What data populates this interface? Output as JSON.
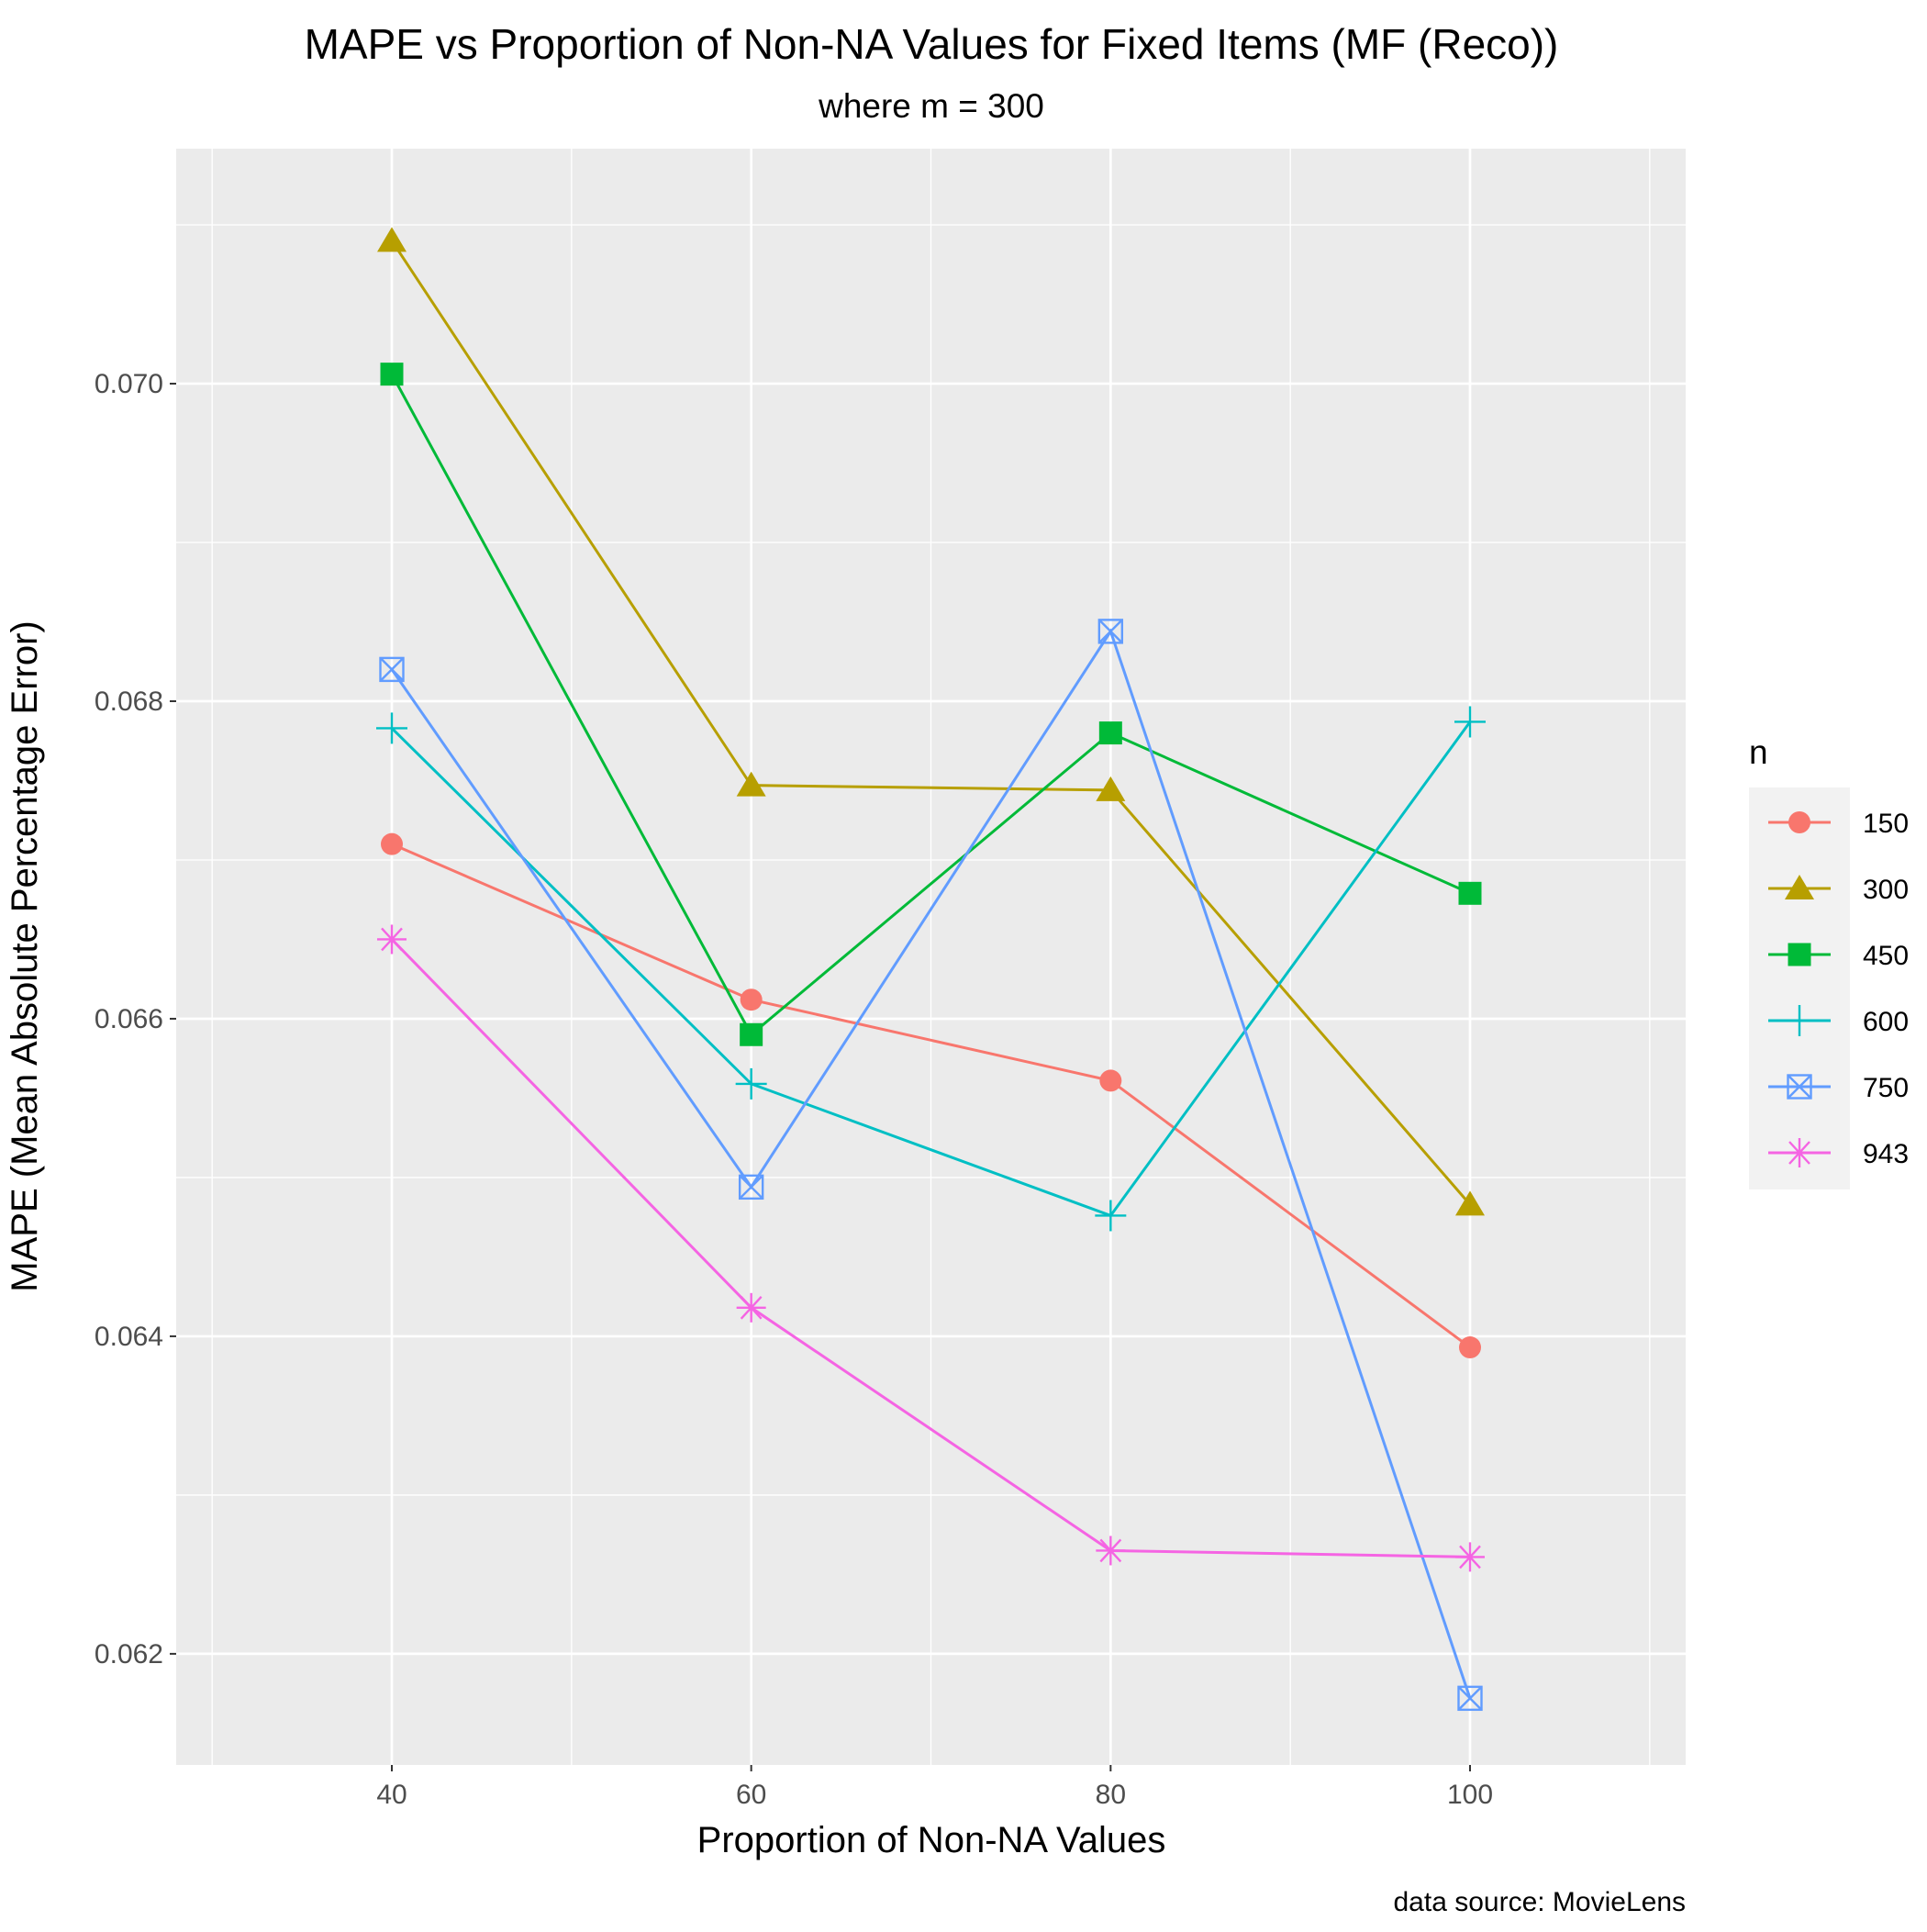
{
  "chart_data": {
    "type": "line",
    "title": "MAPE vs Proportion of Non-NA Values for Fixed Items (MF (Reco))",
    "subtitle": "where m = 300",
    "xlabel": "Proportion of Non-NA Values",
    "ylabel": "MAPE (Mean Absolute Percentage Error)",
    "caption": "data source: MovieLens",
    "x": [
      40,
      60,
      80,
      100
    ],
    "x_ticks": [
      40,
      60,
      80,
      100
    ],
    "y_ticks": [
      0.062,
      0.064,
      0.066,
      0.068,
      0.07
    ],
    "y_tick_labels": [
      "0.062",
      "0.064",
      "0.066",
      "0.068",
      "0.070"
    ],
    "xlim": [
      28,
      112
    ],
    "ylim": [
      0.0613,
      0.07148
    ],
    "grid": true,
    "legend": {
      "title": "n",
      "position": "right"
    },
    "series": [
      {
        "name": "150",
        "color": "#F8766D",
        "shape": "circle",
        "values": [
          0.0671,
          0.06612,
          0.06561,
          0.06393
        ]
      },
      {
        "name": "300",
        "color": "#B79F00",
        "shape": "triangle",
        "values": [
          0.0709,
          0.06747,
          0.06744,
          0.06483
        ]
      },
      {
        "name": "450",
        "color": "#00BA38",
        "shape": "square",
        "values": [
          0.07006,
          0.0659,
          0.0678,
          0.06679
        ]
      },
      {
        "name": "600",
        "color": "#00BFC4",
        "shape": "plus",
        "values": [
          0.06783,
          0.06559,
          0.06476,
          0.06787
        ]
      },
      {
        "name": "750",
        "color": "#619CFF",
        "shape": "square-x",
        "values": [
          0.0682,
          0.06494,
          0.06844,
          0.06172
        ]
      },
      {
        "name": "943",
        "color": "#F564E3",
        "shape": "asterisk",
        "values": [
          0.0665,
          0.06418,
          0.06265,
          0.06261
        ]
      }
    ]
  }
}
